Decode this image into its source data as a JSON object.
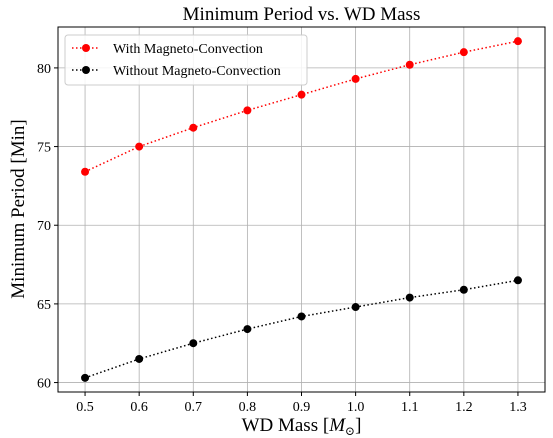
{
  "chart_data": {
    "type": "line",
    "title": "Minimum Period vs. WD Mass",
    "xlabel": "WD Mass [",
    "xlabel_symbol": "M",
    "xlabel_sub": "⊙",
    "xlabel_close": "]",
    "ylabel": "Minimum Period [Min]",
    "x": [
      0.5,
      0.6,
      0.7,
      0.8,
      0.9,
      1.0,
      1.1,
      1.2,
      1.3
    ],
    "xlim": [
      0.45,
      1.35
    ],
    "ylim": [
      59.4,
      82.6
    ],
    "xticks": [
      "0.5",
      "0.6",
      "0.7",
      "0.8",
      "0.9",
      "1.0",
      "1.1",
      "1.2",
      "1.3"
    ],
    "yticks": [
      60,
      65,
      70,
      75,
      80
    ],
    "grid": true,
    "legend_position": "top-left",
    "series": [
      {
        "name": "With Magneto-Convection",
        "color": "#ff0000",
        "values": [
          73.4,
          75.0,
          76.2,
          77.3,
          78.3,
          79.3,
          80.2,
          81.0,
          81.7
        ]
      },
      {
        "name": "Without Magneto-Convection",
        "color": "#000000",
        "values": [
          60.3,
          61.5,
          62.5,
          63.4,
          64.2,
          64.8,
          65.4,
          65.9,
          66.5
        ]
      }
    ]
  }
}
